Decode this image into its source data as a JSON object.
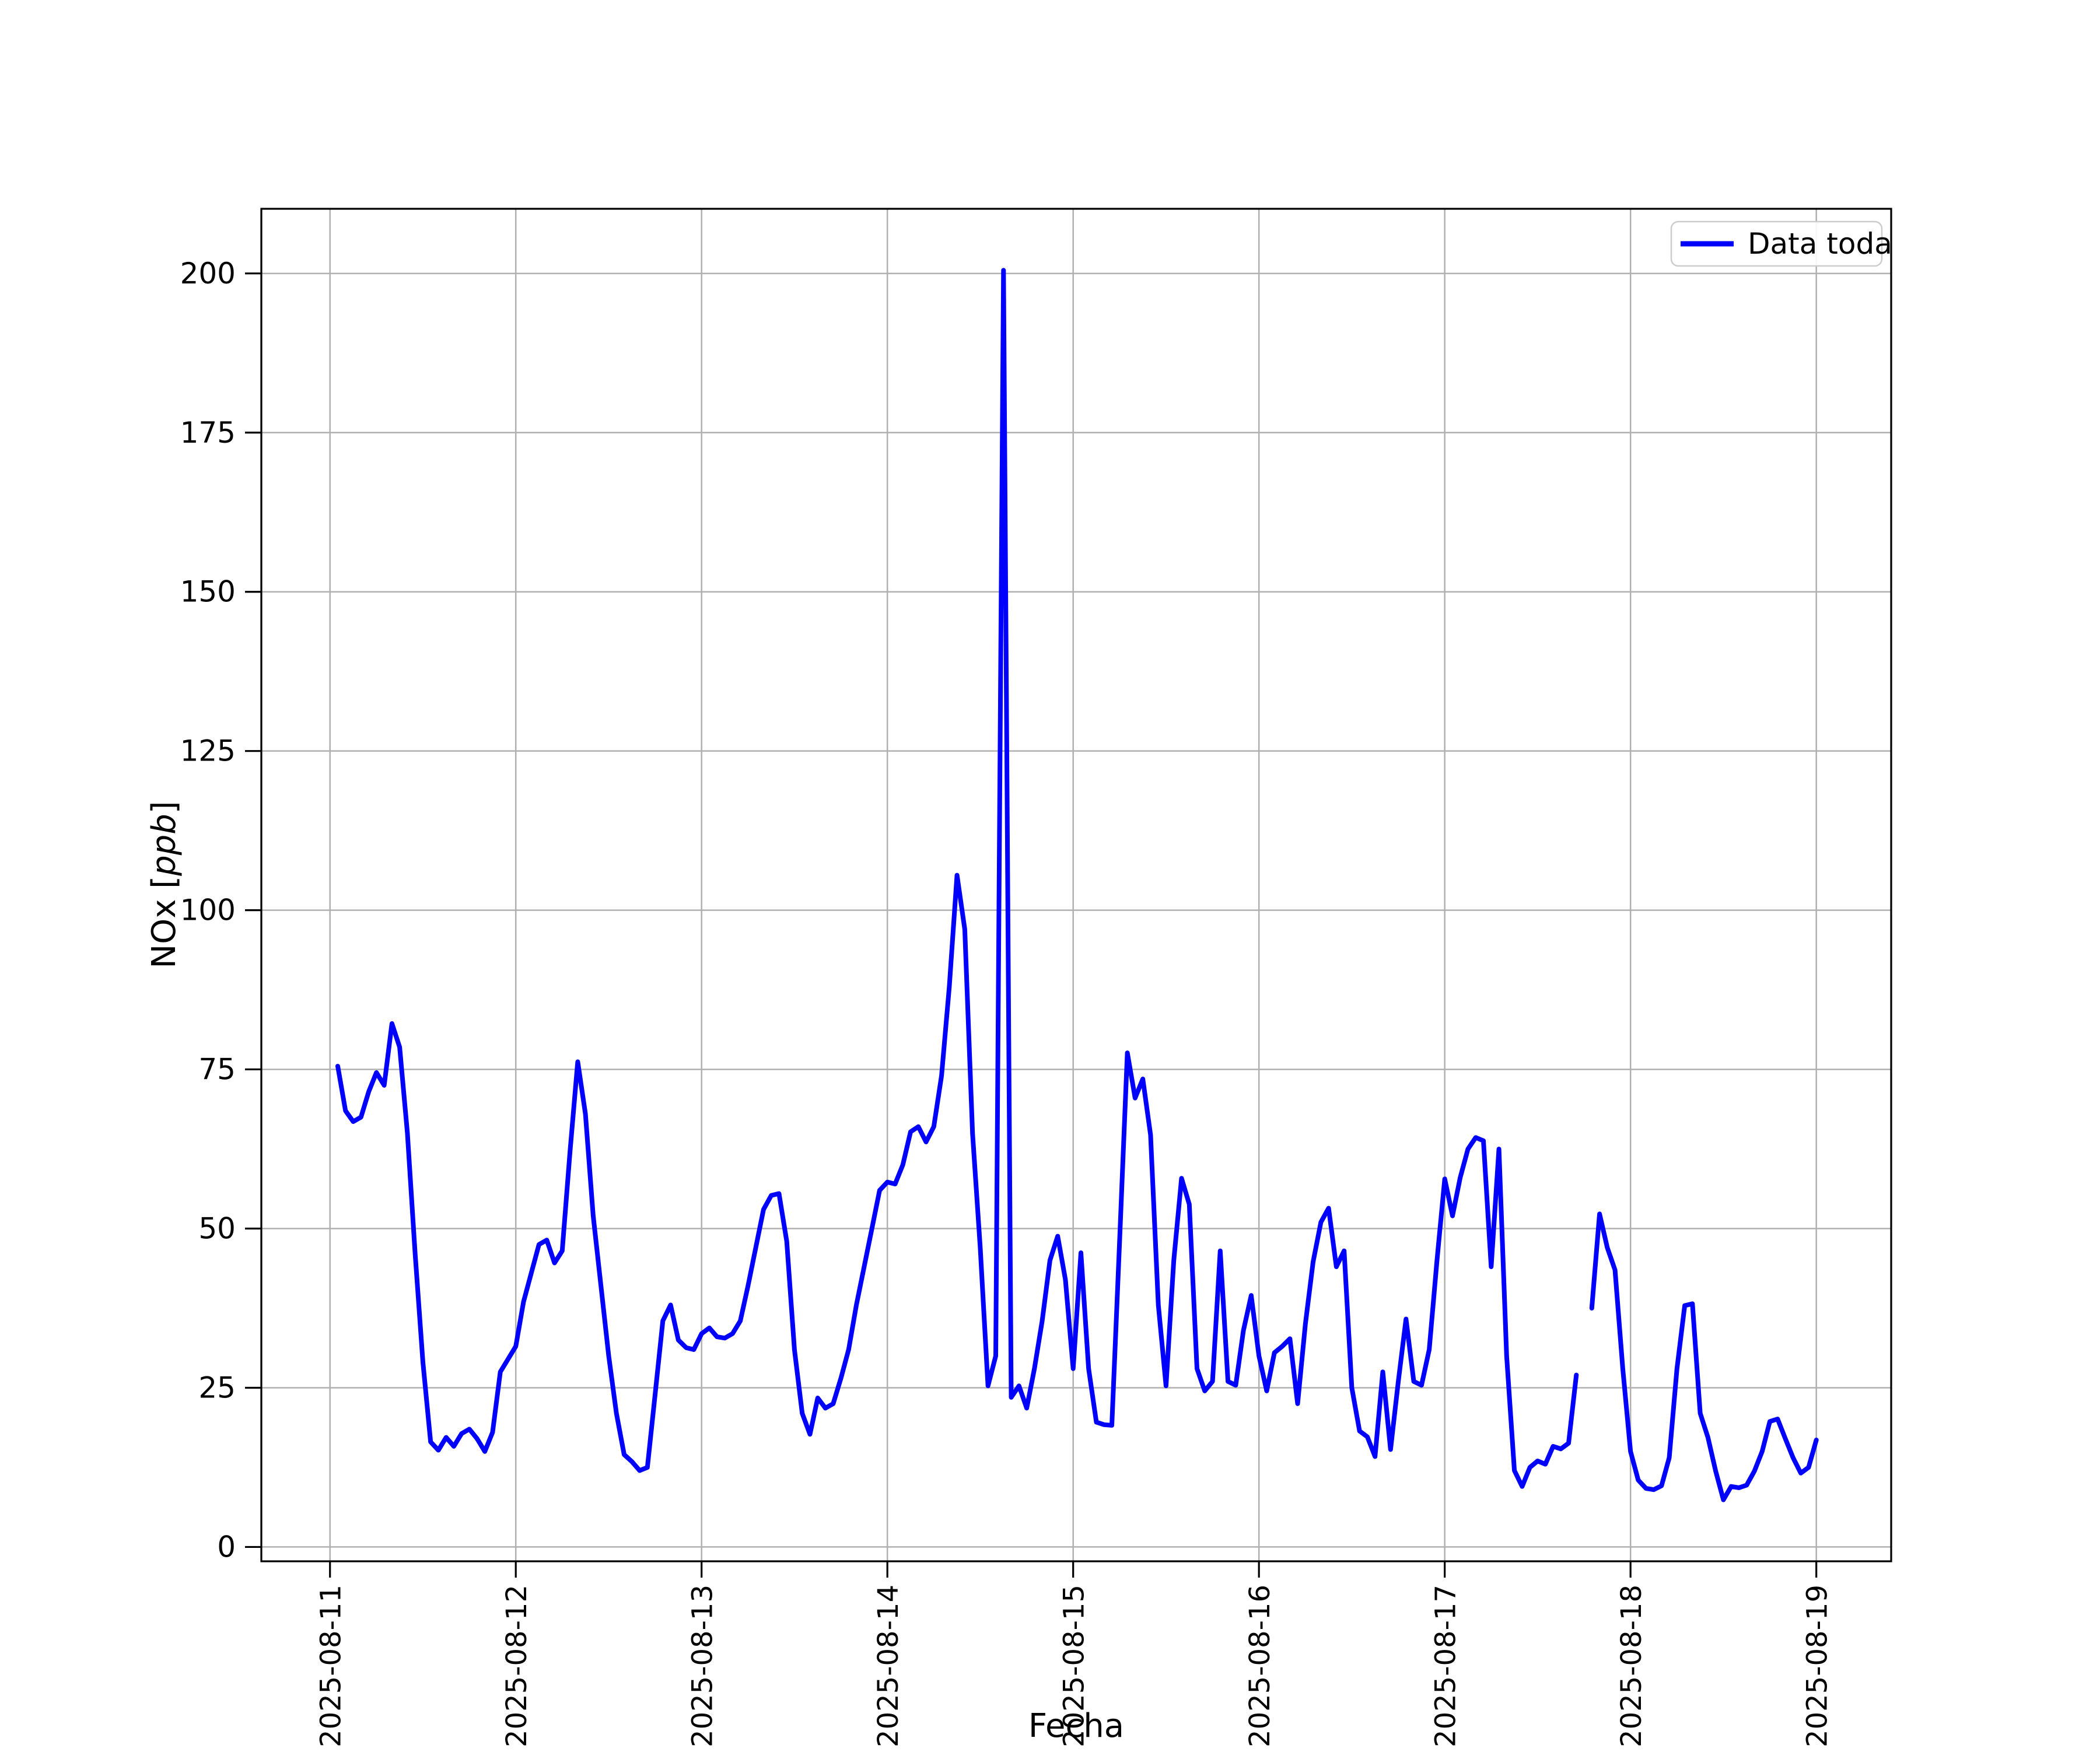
{
  "figure": {
    "background": "#ffffff",
    "border_color": "#000000"
  },
  "chart_data": {
    "type": "line",
    "title": "",
    "xlabel": "Fecha",
    "ylabel": "NOx [ppb]",
    "ylabel_parts": {
      "prefix": "NOx [",
      "math": "ppb",
      "suffix": "]"
    },
    "legend": {
      "label": "Data toda",
      "position": "upper right"
    },
    "line_color": "#0000ff",
    "grid": true,
    "grid_color": "#b0b0b0",
    "axis_text_color": "#000000",
    "x_tick_labels": [
      "2025-08-11",
      "2025-08-12",
      "2025-08-13",
      "2025-08-14",
      "2025-08-15",
      "2025-08-16",
      "2025-08-17",
      "2025-08-18",
      "2025-08-19"
    ],
    "y_ticks": [
      0,
      25,
      50,
      75,
      100,
      125,
      150,
      175,
      200
    ],
    "ylim": [
      -2.25,
      210.15
    ],
    "xlim_hours": [
      -8.87,
      201.67
    ],
    "x_tick_hours": [
      0,
      24,
      48,
      72,
      96,
      120,
      144,
      168,
      192
    ],
    "series": [
      {
        "name": "Data toda",
        "start": "2025-08-11 01:00",
        "step_hours": 1,
        "values": [
          75.5,
          68.5,
          66.8,
          67.5,
          71.5,
          74.5,
          72.5,
          82.2,
          78.5,
          65,
          46,
          29,
          16.5,
          15.2,
          17.2,
          15.8,
          17.8,
          18.5,
          17,
          15,
          18,
          27.5,
          29.5,
          31.5,
          38.5,
          43,
          47.5,
          48.2,
          44.6,
          46.5,
          62,
          76.2,
          68,
          52,
          41,
          30,
          21,
          14.5,
          13.4,
          12,
          12.5,
          24,
          35.5,
          38,
          32.5,
          31.3,
          31,
          33.5,
          34.4,
          33,
          32.8,
          33.5,
          35.5,
          41,
          47,
          53,
          55.2,
          55.5,
          48,
          31,
          21,
          17.7,
          23.4,
          21.8,
          22.5,
          26.5,
          31,
          38,
          44,
          50,
          56,
          57.3,
          57,
          60,
          65.2,
          66,
          63.6,
          66,
          74,
          88,
          105.5,
          97,
          65,
          47,
          25.3,
          30,
          200.5,
          23.5,
          25.3,
          21.8,
          28,
          35.5,
          45,
          48.8,
          42,
          28,
          46.2,
          28,
          19.6,
          19.2,
          19.1,
          48,
          77.6,
          70.5,
          73.5,
          64.7,
          38,
          25.3,
          45,
          57.9,
          53.8,
          28,
          24.5,
          26,
          46.5,
          26,
          25.4,
          34,
          39.5,
          30,
          24.5,
          30.5,
          31.5,
          32.7,
          22.5,
          35,
          44.8,
          51,
          53.2,
          44,
          46.5,
          25,
          18.2,
          17.3,
          14.2,
          27.5,
          15.3,
          26,
          35.8,
          26,
          25.4,
          31,
          45,
          57.8,
          52,
          58,
          62.5,
          64.3,
          63.8,
          44,
          62.5,
          30,
          12,
          9.5,
          12.5,
          13.5,
          13,
          15.8,
          15.4,
          16.3,
          27,
          null,
          37.5,
          52.3,
          47,
          43.5,
          28,
          15,
          10.5,
          9.2,
          9.0,
          9.6,
          14,
          28,
          37.9,
          38.2,
          21,
          17.2,
          11.9,
          7.4,
          9.5,
          9.3,
          9.7,
          11.9,
          15,
          19.7,
          20.1,
          17,
          14,
          11.6,
          12.5,
          16.8
        ]
      }
    ]
  }
}
